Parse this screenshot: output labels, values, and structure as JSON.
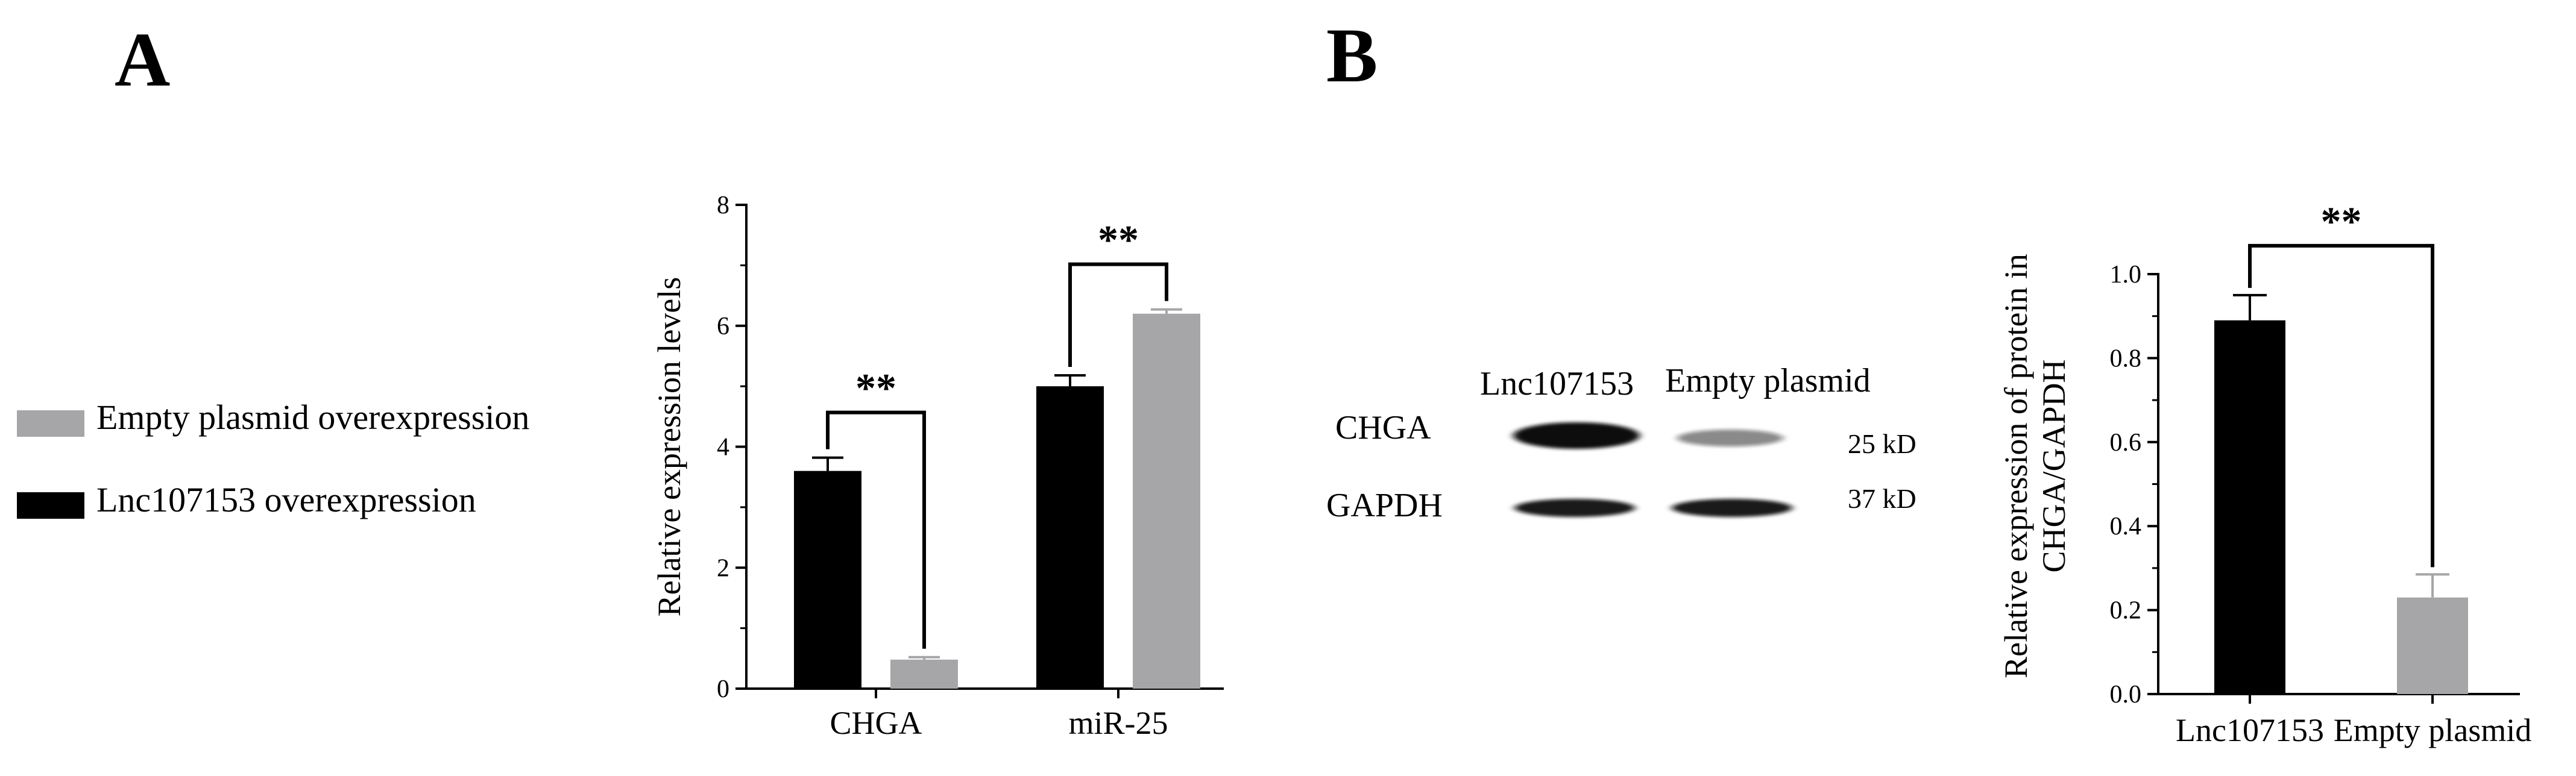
{
  "panels": {
    "a": {
      "letter": "A"
    },
    "b": {
      "letter": "B"
    }
  },
  "legend": [
    {
      "label": "Empty plasmid overexpression",
      "color": "#a6a6a8"
    },
    {
      "label": "Lnc107153 overexpression",
      "color": "#000000"
    }
  ],
  "blot": {
    "lanes": [
      "Lnc107153",
      "Empty plasmid"
    ],
    "rows": [
      {
        "label": "CHGA",
        "size": "25 kD",
        "band_intensity": [
          1.0,
          0.5
        ]
      },
      {
        "label": "GAPDH",
        "size": "37 kD",
        "band_intensity": [
          0.95,
          0.95
        ]
      }
    ]
  },
  "colors": {
    "lnc": "#000000",
    "empty": "#a6a6a8",
    "axis": "#000000"
  },
  "chart_data": [
    {
      "type": "bar",
      "title": "",
      "xlabel": "",
      "ylabel": "Relative expression levels",
      "categories": [
        "CHGA",
        "miR-25"
      ],
      "ylim": [
        0,
        8
      ],
      "yticks": [
        "0",
        "2",
        "4",
        "6",
        "8"
      ],
      "series": [
        {
          "name": "Lnc107153 overexpression",
          "color": "#000000",
          "values": [
            3.6,
            5.0
          ],
          "errors": [
            0.22,
            0.18
          ]
        },
        {
          "name": "Empty plasmid overexpression",
          "color": "#a6a6a8",
          "values": [
            0.48,
            6.2
          ],
          "errors": [
            0.04,
            0.07
          ]
        }
      ],
      "significance": [
        "**",
        "**"
      ]
    },
    {
      "type": "bar",
      "title": "",
      "xlabel": "",
      "ylabel": "Relative expression of protein in CHGA/GAPDH",
      "ylabel_lines": [
        "Relative expression of protein in",
        "CHGA/GAPDH"
      ],
      "categories": [
        "Lnc107153",
        "Empty plasmid"
      ],
      "values": [
        0.89,
        0.23
      ],
      "errors": [
        0.06,
        0.055
      ],
      "colors": [
        "#000000",
        "#a6a6a8"
      ],
      "ylim": [
        0,
        1.0
      ],
      "yticks": [
        "0.0",
        "0.2",
        "0.4",
        "0.6",
        "0.8",
        "1.0"
      ],
      "significance": [
        "**"
      ]
    }
  ]
}
